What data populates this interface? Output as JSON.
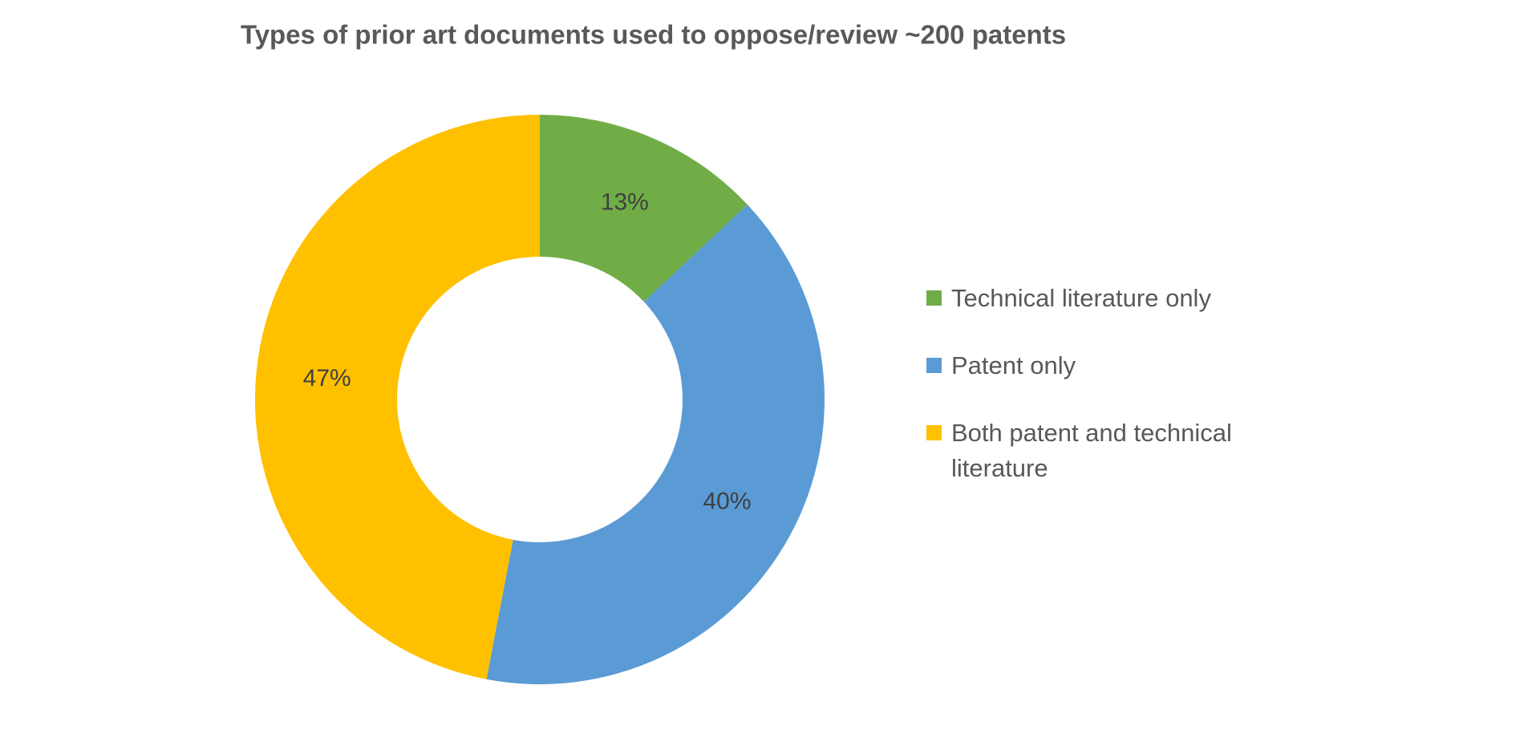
{
  "chart_data": {
    "type": "donut",
    "title": "Types of prior art documents used to oppose/review ~200 patents",
    "categories": [
      "Technical literature only",
      "Patent only",
      "Both patent and technical literature"
    ],
    "values": [
      13,
      40,
      47
    ],
    "value_labels": [
      "13%",
      "40%",
      "47%"
    ],
    "colors": [
      "#70ad47",
      "#5b9bd5",
      "#ffc000"
    ],
    "legend": "right"
  }
}
